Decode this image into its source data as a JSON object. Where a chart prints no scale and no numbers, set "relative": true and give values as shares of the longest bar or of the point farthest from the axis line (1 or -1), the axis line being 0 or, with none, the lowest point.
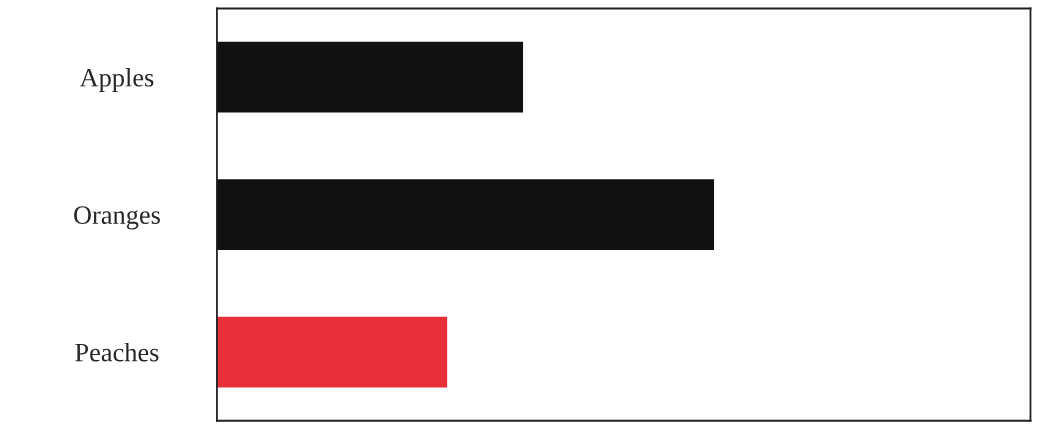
{
  "chart_data": {
    "type": "bar",
    "orientation": "horizontal",
    "relative": true,
    "categories": [
      "Apples",
      "Oranges",
      "Peaches"
    ],
    "values": [
      0.615,
      1,
      0.462
    ],
    "colors": [
      "#111111",
      "#111111",
      "#e8303a"
    ]
  }
}
